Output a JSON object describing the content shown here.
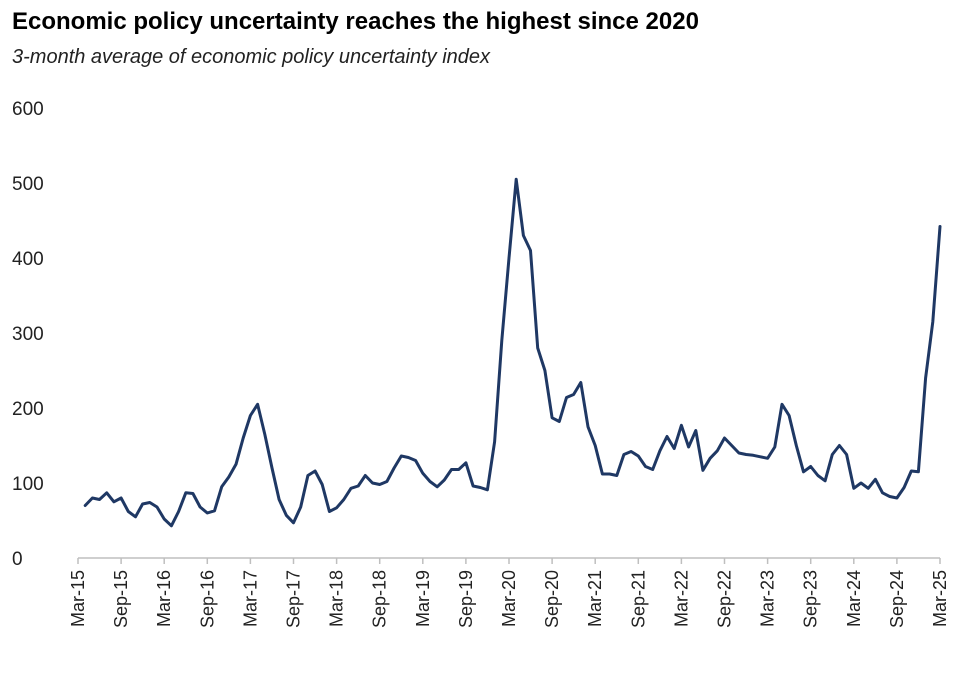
{
  "chart_data": {
    "type": "line",
    "title": "Economic policy uncertainty reaches the highest since 2020",
    "subtitle": "3-month average of economic policy uncertainty index",
    "xlabel": "",
    "ylabel": "",
    "ylim": [
      0,
      600
    ],
    "yticks": [
      0,
      100,
      200,
      300,
      400,
      500,
      600
    ],
    "xticks": [
      "Mar-15",
      "Sep-15",
      "Mar-16",
      "Sep-16",
      "Mar-17",
      "Sep-17",
      "Mar-18",
      "Sep-18",
      "Mar-19",
      "Sep-19",
      "Mar-20",
      "Sep-20",
      "Mar-21",
      "Sep-21",
      "Mar-22",
      "Sep-22",
      "Mar-23",
      "Sep-23",
      "Mar-24",
      "Sep-24",
      "Mar-25"
    ],
    "grid": false,
    "legend": "none",
    "series_color": "#1f3864",
    "x": [
      "Apr-15",
      "May-15",
      "Jun-15",
      "Jul-15",
      "Aug-15",
      "Sep-15",
      "Oct-15",
      "Nov-15",
      "Dec-15",
      "Jan-16",
      "Feb-16",
      "Mar-16",
      "Apr-16",
      "May-16",
      "Jun-16",
      "Jul-16",
      "Aug-16",
      "Sep-16",
      "Oct-16",
      "Nov-16",
      "Dec-16",
      "Jan-17",
      "Feb-17",
      "Mar-17",
      "Apr-17",
      "May-17",
      "Jun-17",
      "Jul-17",
      "Aug-17",
      "Sep-17",
      "Oct-17",
      "Nov-17",
      "Dec-17",
      "Jan-18",
      "Feb-18",
      "Mar-18",
      "Apr-18",
      "May-18",
      "Jun-18",
      "Jul-18",
      "Aug-18",
      "Sep-18",
      "Oct-18",
      "Nov-18",
      "Dec-18",
      "Jan-19",
      "Feb-19",
      "Mar-19",
      "Apr-19",
      "May-19",
      "Jun-19",
      "Jul-19",
      "Aug-19",
      "Sep-19",
      "Oct-19",
      "Nov-19",
      "Dec-19",
      "Jan-20",
      "Feb-20",
      "Mar-20",
      "Apr-20",
      "May-20",
      "Jun-20",
      "Jul-20",
      "Aug-20",
      "Sep-20",
      "Oct-20",
      "Nov-20",
      "Dec-20",
      "Jan-21",
      "Feb-21",
      "Mar-21",
      "Apr-21",
      "May-21",
      "Jun-21",
      "Jul-21",
      "Aug-21",
      "Sep-21",
      "Oct-21",
      "Nov-21",
      "Dec-21",
      "Jan-22",
      "Feb-22",
      "Mar-22",
      "Apr-22",
      "May-22",
      "Jun-22",
      "Jul-22",
      "Aug-22",
      "Sep-22",
      "Oct-22",
      "Nov-22",
      "Dec-22",
      "Jan-23",
      "Feb-23",
      "Mar-23",
      "Apr-23",
      "May-23",
      "Jun-23",
      "Jul-23",
      "Aug-23",
      "Sep-23",
      "Oct-23",
      "Nov-23",
      "Dec-23",
      "Jan-24",
      "Feb-24",
      "Mar-24",
      "Apr-24",
      "May-24",
      "Jun-24",
      "Jul-24",
      "Aug-24",
      "Sep-24",
      "Oct-24",
      "Nov-24",
      "Dec-24",
      "Jan-25",
      "Feb-25",
      "Mar-25"
    ],
    "series": [
      {
        "values": [
          70,
          80,
          78,
          87,
          75,
          80,
          62,
          55,
          72,
          74,
          68,
          52,
          43,
          62,
          87,
          86,
          68,
          60,
          63,
          95,
          108,
          125,
          160,
          190,
          205,
          165,
          120,
          78,
          57,
          47,
          68,
          110,
          116,
          98,
          62,
          67,
          78,
          93,
          96,
          110,
          100,
          98,
          102,
          120,
          136,
          134,
          130,
          113,
          102,
          95,
          104,
          118,
          118,
          127,
          96,
          94,
          91,
          155,
          290,
          400,
          505,
          430,
          410,
          280,
          250,
          187,
          182,
          214,
          218,
          234,
          175,
          150,
          112,
          112,
          110,
          138,
          142,
          136,
          122,
          118,
          143,
          162,
          146,
          177,
          148,
          170,
          117,
          133,
          143,
          160,
          150,
          140,
          138,
          137,
          135,
          133,
          148,
          205,
          190,
          150,
          115,
          122,
          110,
          103,
          138,
          150,
          138,
          93,
          100,
          93,
          105,
          87,
          82,
          80,
          94,
          116,
          115,
          240,
          315,
          442
        ]
      }
    ]
  }
}
